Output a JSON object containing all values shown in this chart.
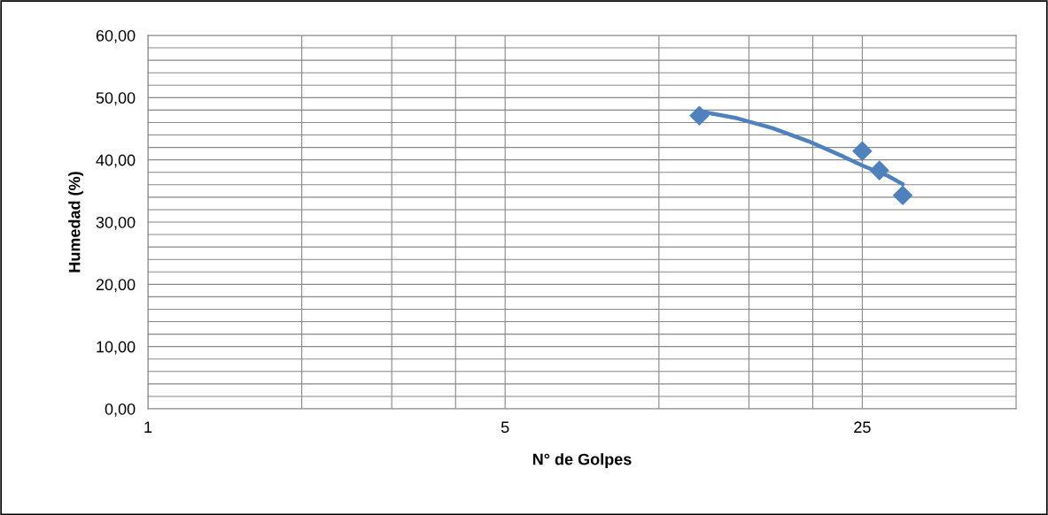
{
  "chart_data": {
    "type": "scatter",
    "xlabel": "N° de Golpes",
    "ylabel": "Humedad (%)",
    "log": "x",
    "xlim": [
      1,
      50
    ],
    "ylim": [
      0,
      60
    ],
    "xticks": [
      1,
      {
        "value": 2,
        "label": null
      },
      {
        "value": 3,
        "label": null
      },
      {
        "value": 4,
        "label": null
      },
      5,
      {
        "value": 10,
        "label": null
      },
      {
        "value": 15,
        "label": null
      },
      {
        "value": 20,
        "label": null
      },
      25
    ],
    "yticks": [
      {
        "value": 0,
        "label": "0,00"
      },
      {
        "value": 2,
        "label": null
      },
      {
        "value": 4,
        "label": null
      },
      {
        "value": 6,
        "label": null
      },
      {
        "value": 8,
        "label": null
      },
      {
        "value": 10,
        "label": "10,00"
      },
      {
        "value": 12,
        "label": null
      },
      {
        "value": 14,
        "label": null
      },
      {
        "value": 16,
        "label": null
      },
      {
        "value": 18,
        "label": null
      },
      {
        "value": 20,
        "label": "20,00"
      },
      {
        "value": 22,
        "label": null
      },
      {
        "value": 24,
        "label": null
      },
      {
        "value": 26,
        "label": null
      },
      {
        "value": 28,
        "label": null
      },
      {
        "value": 30,
        "label": "30,00"
      },
      {
        "value": 32,
        "label": null
      },
      {
        "value": 34,
        "label": null
      },
      {
        "value": 36,
        "label": null
      },
      {
        "value": 38,
        "label": null
      },
      {
        "value": 40,
        "label": "40,00"
      },
      {
        "value": 42,
        "label": null
      },
      {
        "value": 44,
        "label": null
      },
      {
        "value": 46,
        "label": null
      },
      {
        "value": 48,
        "label": null
      },
      {
        "value": 50,
        "label": "50,00"
      },
      {
        "value": 52,
        "label": null
      },
      {
        "value": 54,
        "label": null
      },
      {
        "value": 56,
        "label": null
      },
      {
        "value": 58,
        "label": null
      },
      {
        "value": 60,
        "label": "60,00"
      }
    ],
    "grid": true,
    "marker": "diamond",
    "series": [
      {
        "color": "#4f81bd",
        "x": [
          12,
          25,
          27,
          30
        ],
        "values": [
          47.1,
          41.4,
          38.3,
          34.3
        ]
      },
      {
        "type": "line",
        "color": "#4f81bd",
        "line_style": "solid",
        "marker": "none",
        "x": [
          12,
          14.2,
          16.7,
          19.6,
          23,
          25,
          28.1,
          30
        ],
        "values": [
          47.8,
          46.7,
          45.1,
          43.0,
          40.5,
          39.1,
          37.4,
          36.1
        ]
      }
    ]
  }
}
